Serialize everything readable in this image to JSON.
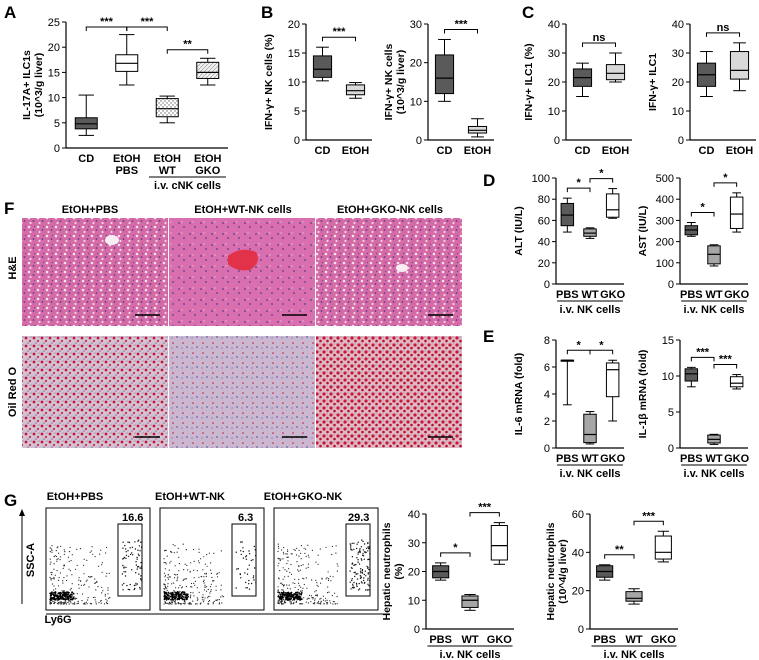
{
  "panels": {
    "A": "A",
    "B": "B",
    "C": "C",
    "D": "D",
    "E": "E",
    "F": "F",
    "G": "G"
  },
  "colors": {
    "dark": "#5a5a5a",
    "mid": "#a6a6a6",
    "light": "#d9d9d9",
    "white": "#ffffff",
    "he_bg": "#d46aa6",
    "oil_bg": "#c9a3b9"
  },
  "chart_data": [
    {
      "id": "A",
      "type": "box",
      "ylabel": "IL-17A+ ILC1s (10^3/g liver)",
      "ylim": [
        0,
        25
      ],
      "yticks": [
        0,
        5,
        10,
        15,
        20,
        25
      ],
      "categories": [
        "CD",
        "EtOH PBS",
        "EtOH WT",
        "EtOH GKO"
      ],
      "group_label": "i.v. cNK cells",
      "boxes": [
        {
          "min": 2.5,
          "q1": 3.8,
          "median": 4.8,
          "q3": 6.0,
          "max": 10.5
        },
        {
          "min": 12.5,
          "q1": 15.2,
          "median": 16.8,
          "q3": 18.5,
          "max": 22.5
        },
        {
          "min": 5.0,
          "q1": 6.2,
          "median": 7.8,
          "q3": 9.8,
          "max": 10.3
        },
        {
          "min": 12.5,
          "q1": 13.8,
          "median": 15.0,
          "q3": 17.0,
          "max": 17.8
        }
      ],
      "significance": [
        {
          "from": 0,
          "to": 1,
          "label": "***"
        },
        {
          "from": 1,
          "to": 2,
          "label": "***"
        },
        {
          "from": 2,
          "to": 3,
          "label": "**"
        }
      ]
    },
    {
      "id": "B1",
      "type": "box",
      "ylabel": "IFN-γ+ NK cells (%)",
      "ylim": [
        0,
        20
      ],
      "yticks": [
        0,
        5,
        10,
        15,
        20
      ],
      "categories": [
        "CD",
        "EtOH"
      ],
      "boxes": [
        {
          "min": 10.2,
          "q1": 10.8,
          "median": 12.2,
          "q3": 14.5,
          "max": 16.0
        },
        {
          "min": 7.2,
          "q1": 7.8,
          "median": 8.5,
          "q3": 9.5,
          "max": 9.9
        }
      ],
      "significance": [
        {
          "from": 0,
          "to": 1,
          "label": "***"
        }
      ]
    },
    {
      "id": "B2",
      "type": "box",
      "ylabel": "IFN-γ+ NK cells (10^3/g liver)",
      "ylim": [
        0,
        30
      ],
      "yticks": [
        0,
        10,
        20,
        30
      ],
      "categories": [
        "CD",
        "EtOH"
      ],
      "boxes": [
        {
          "min": 10.0,
          "q1": 12.0,
          "median": 16.0,
          "q3": 22.0,
          "max": 26.0
        },
        {
          "min": 0.8,
          "q1": 1.8,
          "median": 2.5,
          "q3": 3.5,
          "max": 5.5
        }
      ],
      "significance": [
        {
          "from": 0,
          "to": 1,
          "label": "***"
        }
      ]
    },
    {
      "id": "C1",
      "type": "box",
      "ylabel": "IFN-γ+ ILC1 (%)",
      "ylim": [
        0,
        40
      ],
      "yticks": [
        0,
        10,
        20,
        30,
        40
      ],
      "categories": [
        "CD",
        "EtOH"
      ],
      "boxes": [
        {
          "min": 15.0,
          "q1": 18.5,
          "median": 21.5,
          "q3": 24.5,
          "max": 26.5
        },
        {
          "min": 20.0,
          "q1": 20.8,
          "median": 23.0,
          "q3": 26.0,
          "max": 30.0
        }
      ],
      "significance": [
        {
          "from": 0,
          "to": 1,
          "label": "ns"
        }
      ]
    },
    {
      "id": "C2",
      "type": "box",
      "ylabel": "IFN-γ+ ILC1",
      "ylim": [
        0,
        40
      ],
      "yticks": [
        0,
        10,
        20,
        30,
        40
      ],
      "categories": [
        "CD",
        "EtOH"
      ],
      "boxes": [
        {
          "min": 15.0,
          "q1": 18.5,
          "median": 22.5,
          "q3": 26.5,
          "max": 30.5
        },
        {
          "min": 17.0,
          "q1": 21.0,
          "median": 24.0,
          "q3": 30.5,
          "max": 33.5
        }
      ],
      "significance": [
        {
          "from": 0,
          "to": 1,
          "label": "ns"
        }
      ]
    },
    {
      "id": "D1",
      "type": "box",
      "ylabel": "ALT (IU/L)",
      "ylim": [
        0,
        100
      ],
      "yticks": [
        0,
        20,
        40,
        60,
        80,
        100
      ],
      "categories": [
        "PBS",
        "WT",
        "GKO"
      ],
      "group_label": "i.v. NK cells",
      "boxes": [
        {
          "min": 49,
          "q1": 55,
          "median": 65,
          "q3": 76,
          "max": 81
        },
        {
          "min": 43,
          "q1": 45,
          "median": 48,
          "q3": 52,
          "max": 53
        },
        {
          "min": 62,
          "q1": 63,
          "median": 70,
          "q3": 85,
          "max": 90
        }
      ],
      "significance": [
        {
          "from": 0,
          "to": 1,
          "label": "*"
        },
        {
          "from": 1,
          "to": 2,
          "label": "*"
        }
      ]
    },
    {
      "id": "D2",
      "type": "box",
      "ylabel": "AST (IU/L)",
      "ylim": [
        0,
        500
      ],
      "yticks": [
        0,
        100,
        200,
        300,
        400,
        500
      ],
      "categories": [
        "PBS",
        "WT",
        "GKO"
      ],
      "group_label": "i.v. NK cells",
      "boxes": [
        {
          "min": 225,
          "q1": 232,
          "median": 255,
          "q3": 275,
          "max": 290
        },
        {
          "min": 85,
          "q1": 95,
          "median": 140,
          "q3": 180,
          "max": 185
        },
        {
          "min": 245,
          "q1": 262,
          "median": 330,
          "q3": 410,
          "max": 430
        }
      ],
      "significance": [
        {
          "from": 0,
          "to": 1,
          "label": "*"
        },
        {
          "from": 1,
          "to": 2,
          "label": "*"
        }
      ]
    },
    {
      "id": "E1",
      "type": "box",
      "ylabel": "IL-6 mRNA (fold)",
      "ylim": [
        0,
        8
      ],
      "yticks": [
        0,
        2,
        4,
        6,
        8
      ],
      "categories": [
        "PBS",
        "WT",
        "GKO"
      ],
      "group_label": "i.v. NK cells",
      "boxes": [
        {
          "min": 3.2,
          "q1": 6.5,
          "median": 6.5,
          "q3": 6.5,
          "max": 6.5
        },
        {
          "min": 0.3,
          "q1": 0.4,
          "median": 1.0,
          "q3": 2.5,
          "max": 2.7
        },
        {
          "min": 2.0,
          "q1": 3.8,
          "median": 5.8,
          "q3": 6.3,
          "max": 6.5
        }
      ],
      "significance": [
        {
          "from": 0,
          "to": 1,
          "label": "*"
        },
        {
          "from": 1,
          "to": 2,
          "label": "*"
        }
      ]
    },
    {
      "id": "E2",
      "type": "box",
      "ylabel": "IL-1β mRNA (fold)",
      "ylim": [
        0,
        15
      ],
      "yticks": [
        0,
        5,
        10,
        15
      ],
      "categories": [
        "PBS",
        "WT",
        "GKO"
      ],
      "group_label": "i.v. NK cells",
      "boxes": [
        {
          "min": 8.5,
          "q1": 9.3,
          "median": 10.3,
          "q3": 11.0,
          "max": 11.2
        },
        {
          "min": 0.5,
          "q1": 0.7,
          "median": 1.2,
          "q3": 1.8,
          "max": 1.9
        },
        {
          "min": 8.2,
          "q1": 8.5,
          "median": 9.0,
          "q3": 9.9,
          "max": 10.2
        }
      ],
      "significance": [
        {
          "from": 0,
          "to": 1,
          "label": "***"
        },
        {
          "from": 1,
          "to": 2,
          "label": "***"
        }
      ]
    },
    {
      "id": "G1",
      "type": "box",
      "ylabel": "Hepatic neutrophils (%)",
      "ylim": [
        0,
        40
      ],
      "yticks": [
        0,
        10,
        20,
        30,
        40
      ],
      "categories": [
        "PBS",
        "WT",
        "GKO"
      ],
      "group_label": "i.v. NK cells",
      "boxes": [
        {
          "min": 17.0,
          "q1": 17.8,
          "median": 20.0,
          "q3": 22.0,
          "max": 23.0
        },
        {
          "min": 6.5,
          "q1": 7.5,
          "median": 10.0,
          "q3": 11.5,
          "max": 12.0
        },
        {
          "min": 22.5,
          "q1": 24.0,
          "median": 29.0,
          "q3": 36.0,
          "max": 37.0
        }
      ],
      "significance": [
        {
          "from": 0,
          "to": 1,
          "label": "*"
        },
        {
          "from": 1,
          "to": 2,
          "label": "***"
        }
      ]
    },
    {
      "id": "G2",
      "type": "box",
      "ylabel": "Hepatic neutrophils (10^4/g liver)",
      "ylim": [
        0,
        60
      ],
      "yticks": [
        0,
        20,
        40,
        60
      ],
      "categories": [
        "PBS",
        "WT",
        "GKO"
      ],
      "group_label": "i.v. NK cells",
      "boxes": [
        {
          "min": 25.5,
          "q1": 27.0,
          "median": 30.0,
          "q3": 33.0,
          "max": 33.5
        },
        {
          "min": 13.0,
          "q1": 14.5,
          "median": 16.0,
          "q3": 19.5,
          "max": 21.0
        },
        {
          "min": 35.0,
          "q1": 36.5,
          "median": 40.0,
          "q3": 48.5,
          "max": 51.0
        }
      ],
      "significance": [
        {
          "from": 0,
          "to": 1,
          "label": "**"
        },
        {
          "from": 1,
          "to": 2,
          "label": "***"
        }
      ]
    }
  ],
  "histology": {
    "columns": [
      "EtOH+PBS",
      "EtOH+WT-NK cells",
      "EtOH+GKO-NK cells"
    ],
    "rows": [
      "H&E",
      "Oil Red O"
    ]
  },
  "flow": {
    "titles": [
      "EtOH+PBS",
      "EtOH+WT-NK",
      "EtOH+GKO-NK"
    ],
    "gate_values": [
      "16.6",
      "6.3",
      "29.3"
    ],
    "y_axis": "SSC-A",
    "x_axis": "Ly6G"
  }
}
